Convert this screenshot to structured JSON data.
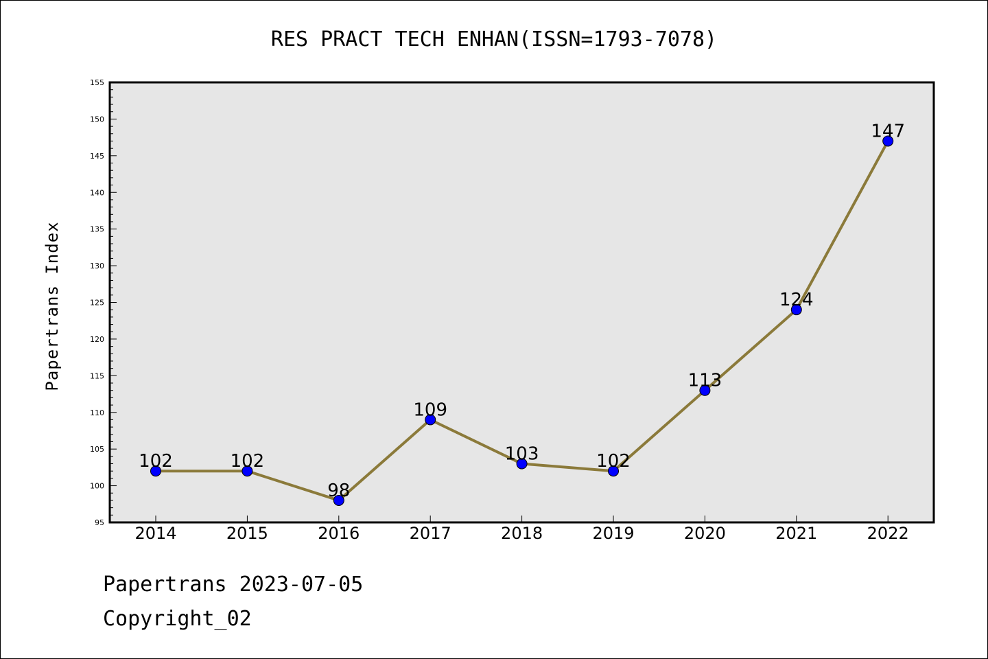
{
  "footer": {
    "line1": "Papertrans 2023-07-05",
    "line2": "Copyright_02"
  },
  "colors": {
    "plot_background": "#e6e6e6",
    "line": "#8b7a3a",
    "marker": "#0000ff",
    "marker_edge": "#000000"
  },
  "chart_data": {
    "type": "line",
    "title": "RES PRACT TECH ENHAN(ISSN=1793-7078)",
    "xlabel": "",
    "ylabel": "Papertrans Index",
    "categories": [
      "2014",
      "2015",
      "2016",
      "2017",
      "2018",
      "2019",
      "2020",
      "2021",
      "2022"
    ],
    "series": [
      {
        "values": [
          102,
          102,
          98,
          109,
          103,
          102,
          113,
          124,
          147
        ]
      }
    ],
    "data_labels": [
      "102",
      "102",
      "98",
      "109",
      "103",
      "102",
      "113",
      "124",
      "147"
    ],
    "ylim": [
      95,
      155
    ],
    "yticks": [
      95,
      100,
      105,
      110,
      115,
      120,
      125,
      130,
      135,
      140,
      145,
      150,
      155
    ],
    "grid": false,
    "legend": "none"
  }
}
